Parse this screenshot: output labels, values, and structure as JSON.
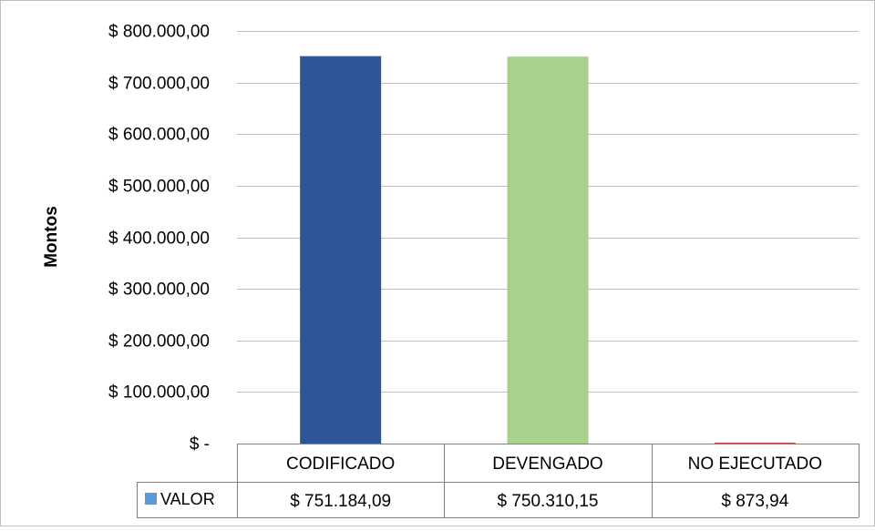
{
  "chart_data": {
    "type": "bar",
    "categories": [
      "CODIFICADO",
      "DEVENGADO",
      "NO EJECUTADO"
    ],
    "series": [
      {
        "name": "VALOR",
        "values": [
          751184.09,
          750310.15,
          873.94
        ]
      }
    ],
    "value_labels": [
      "$ 751.184,09",
      "$ 750.310,15",
      "$ 873,94"
    ],
    "bar_colors": [
      "#2F5597",
      "#A9D18E",
      "#C0504D"
    ],
    "legend_color": "#5B9BD5",
    "ylabel": "Montos",
    "ylim": [
      0,
      800000
    ],
    "yticks": [
      0,
      100000,
      200000,
      300000,
      400000,
      500000,
      600000,
      700000,
      800000
    ],
    "ytick_labels": [
      "$ -",
      "$ 100.000,00",
      "$ 200.000,00",
      "$ 300.000,00",
      "$ 400.000,00",
      "$ 500.000,00",
      "$ 600.000,00",
      "$ 700.000,00",
      "$ 800.000,00"
    ],
    "grid": true,
    "data_table": true,
    "legend_placement": "data-table-row-header"
  }
}
